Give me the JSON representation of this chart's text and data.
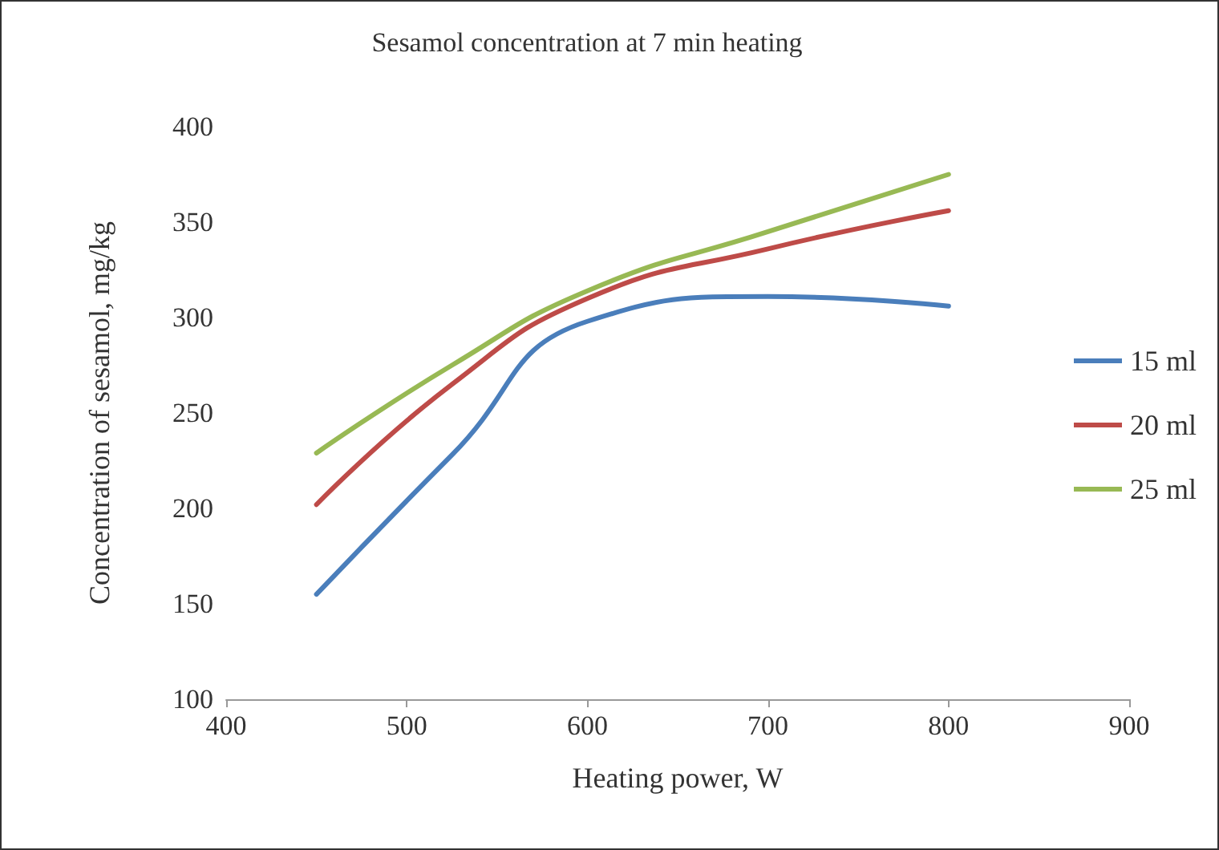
{
  "chart_data": {
    "type": "line",
    "title": "Sesamol concentration at 7 min heating",
    "xlabel": "Heating power, W",
    "ylabel": "Concentration of sesamol, mg/kg",
    "x": [
      450,
      525,
      600,
      700,
      800
    ],
    "series": [
      {
        "name": "15 ml",
        "color": "#4a7ebb",
        "values": [
          155,
          228,
          298,
          311,
          306
        ]
      },
      {
        "name": "20 ml",
        "color": "#be4b48",
        "values": [
          202,
          265,
          310,
          336,
          356
        ]
      },
      {
        "name": "25 ml",
        "color": "#98b954",
        "values": [
          229,
          275,
          314,
          345,
          375
        ]
      }
    ],
    "xlim": [
      400,
      900
    ],
    "xticks": [
      400,
      500,
      600,
      700,
      800,
      900
    ],
    "ylim": [
      100,
      400
    ],
    "yticks": [
      100,
      150,
      200,
      250,
      300,
      350,
      400
    ],
    "grid": false,
    "legend": "right",
    "marker": "none",
    "line_style": "solid"
  }
}
